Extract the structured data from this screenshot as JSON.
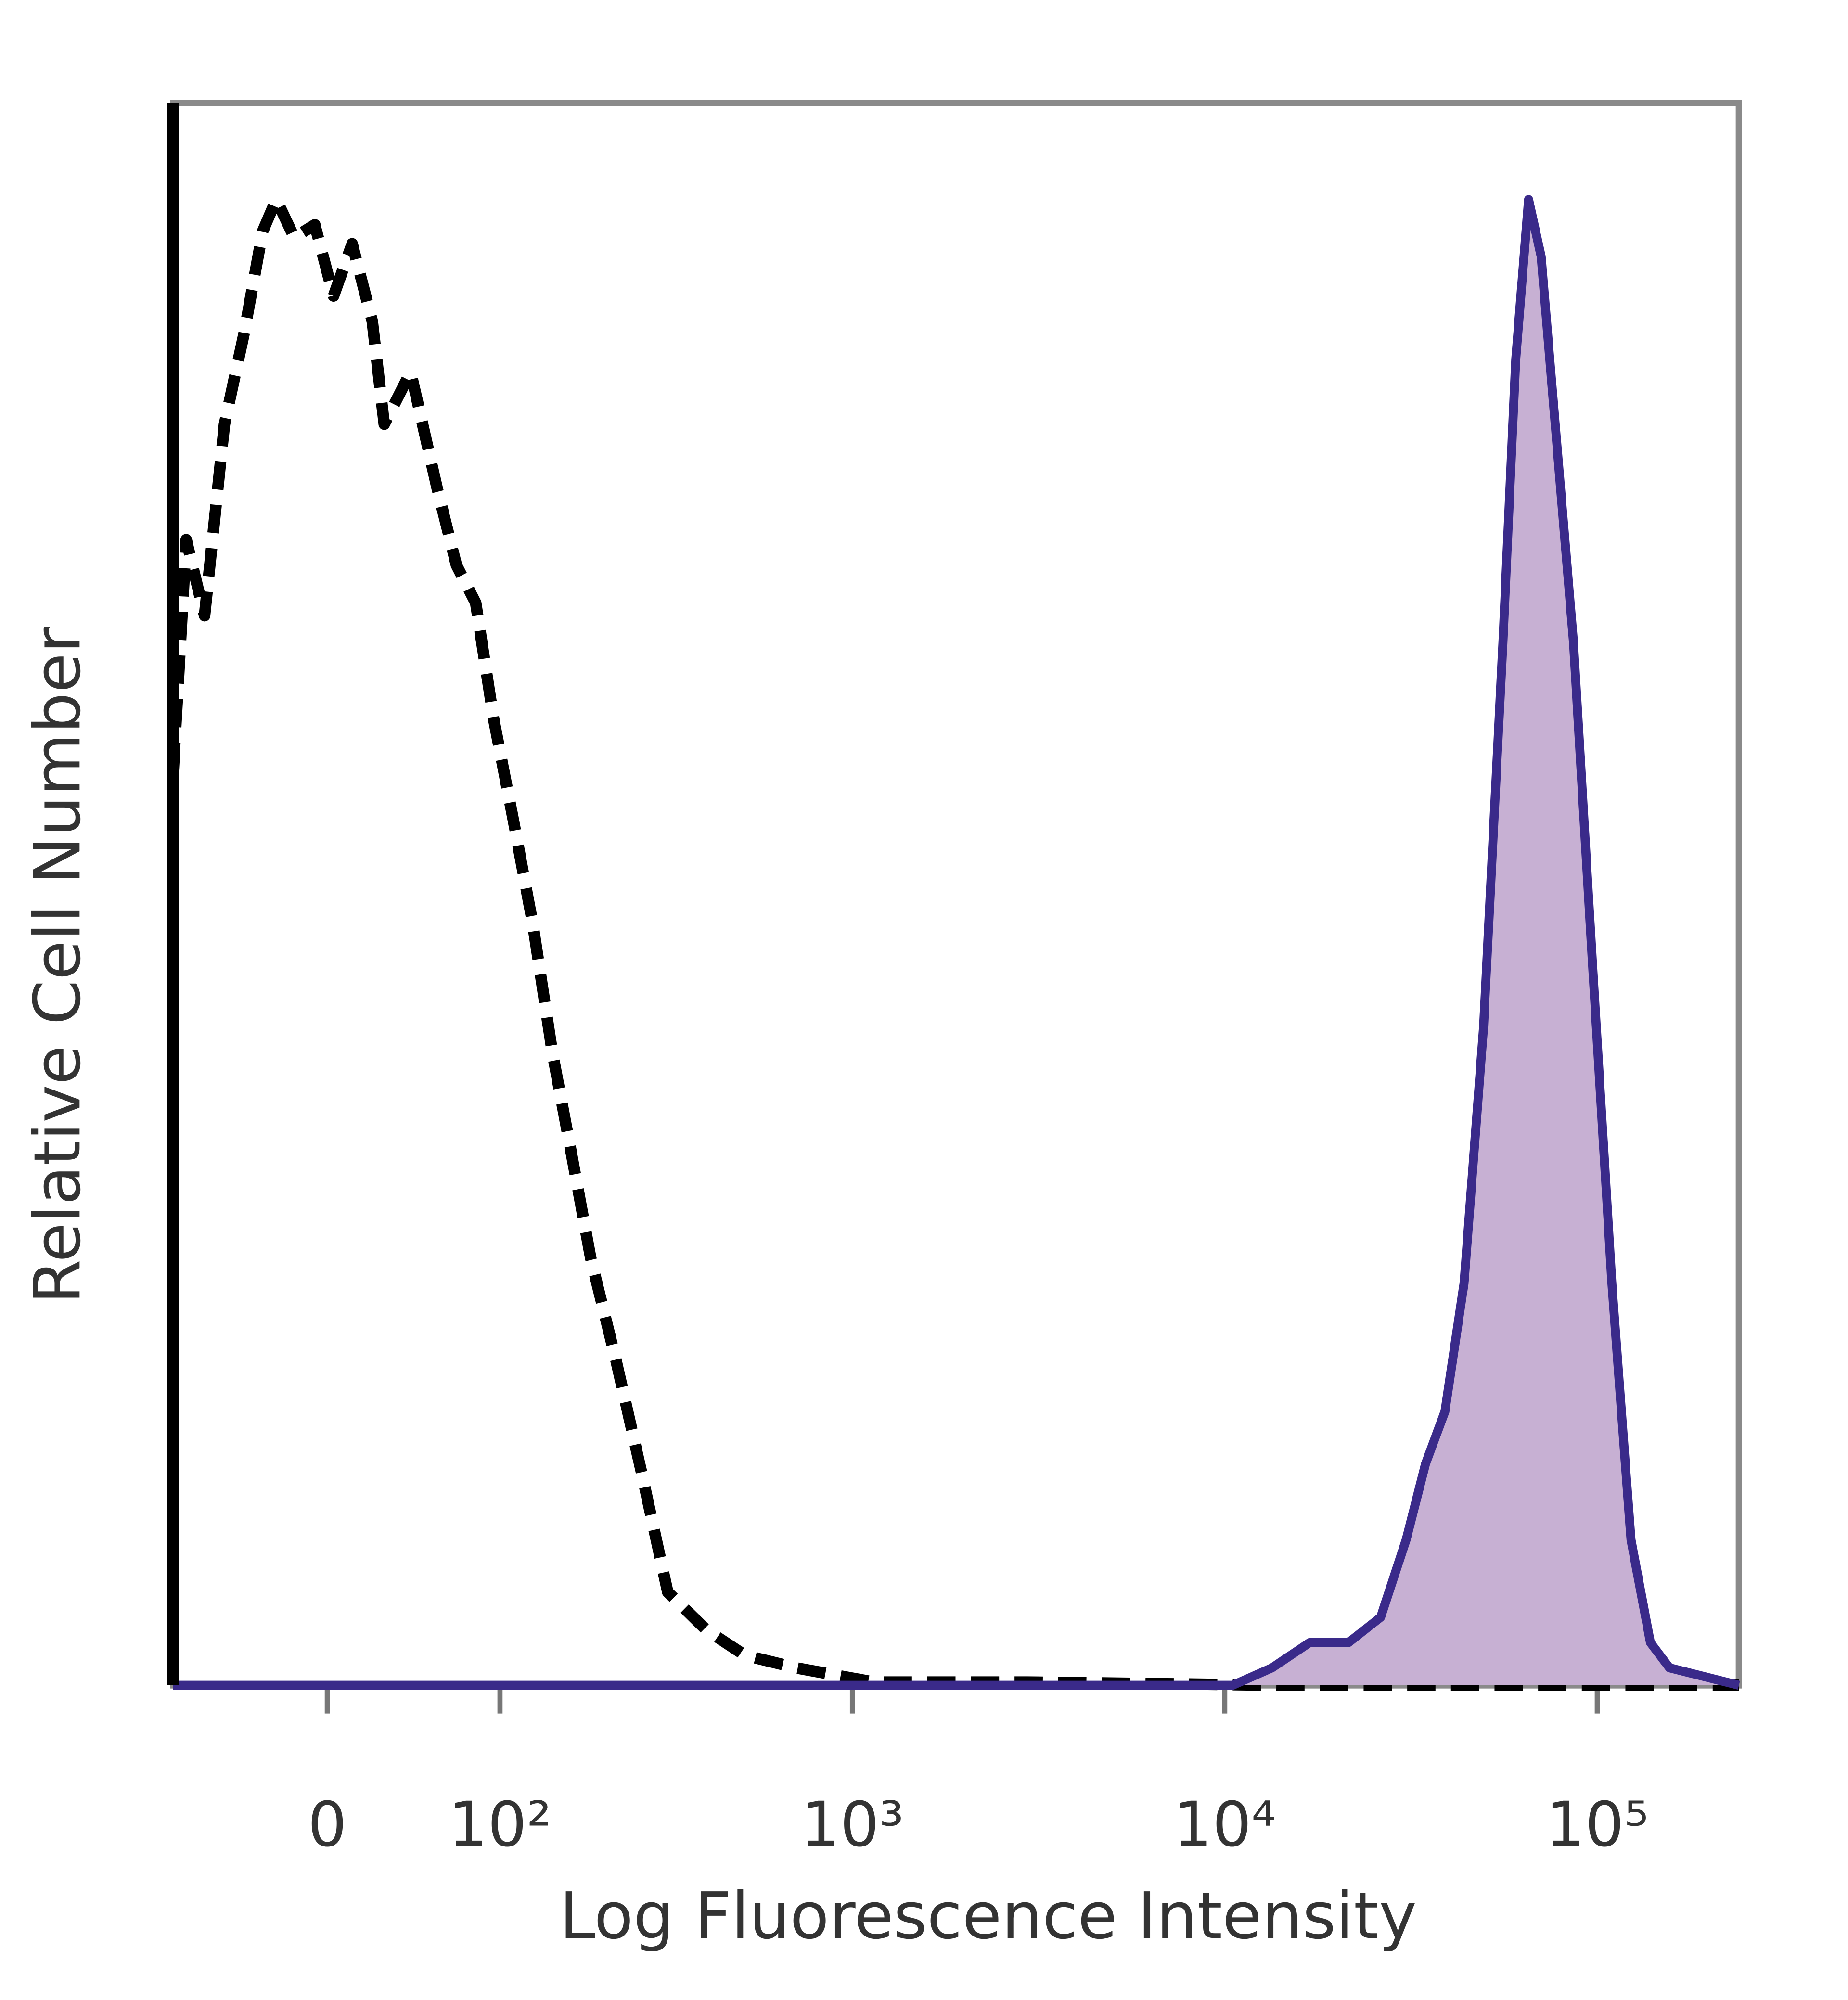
{
  "chart_data": {
    "type": "histogram-overlay",
    "xlabel": "Log Fluorescence Intensity",
    "ylabel": "Relative Cell Number",
    "xscale": "biexponential",
    "xlim": [
      -86,
      240000
    ],
    "xticks": [
      {
        "value": 0,
        "label": "0"
      },
      {
        "value": 100,
        "label": "10²"
      },
      {
        "value": 1000,
        "label": "10³"
      },
      {
        "value": 10000,
        "label": "10⁴"
      },
      {
        "value": 100000,
        "label": "10⁵"
      }
    ],
    "ylim": [
      0,
      100
    ],
    "series": [
      {
        "color": "#000000",
        "style": "dashed",
        "x": [
          -86,
          -77,
          -65,
          -53,
          -42,
          -32,
          -25,
          -16,
          -6,
          3,
          12,
          22,
          28,
          42,
          57,
          69,
          82,
          95,
          111,
          128,
          147,
          168,
          191,
          226,
          268,
          315,
          402,
          512,
          704,
          1140,
          2950,
          14400,
          240000
        ],
        "values": [
          57.8,
          72.4,
          67.6,
          79.7,
          85.4,
          91.9,
          93.9,
          91.5,
          92.3,
          87.8,
          91.1,
          86.2,
          79.7,
          83.0,
          75.7,
          70.8,
          68.4,
          61.1,
          54.6,
          48.1,
          40.0,
          33.5,
          27.0,
          20.5,
          13.2,
          5.9,
          3.5,
          1.9,
          1.1,
          0.2,
          0.2,
          0,
          0
        ]
      },
      {
        "color": "#3a2a8a",
        "fill": "#c7b0d3",
        "style": "filled",
        "x": [
          -86,
          10500,
          13400,
          16900,
          21500,
          26200,
          30700,
          34600,
          39000,
          43900,
          49500,
          55800,
          60400,
          65400,
          70700,
          76600,
          86300,
          97100,
          109400,
          123200,
          138800,
          156200,
          240000
        ],
        "values": [
          0,
          0,
          1.1,
          2.7,
          2.7,
          4.3,
          9.2,
          14.0,
          17.3,
          25.4,
          41.6,
          65.9,
          83.8,
          93.9,
          90.3,
          80.5,
          65.9,
          45.6,
          25.4,
          9.2,
          2.7,
          1.1,
          0
        ]
      }
    ]
  }
}
